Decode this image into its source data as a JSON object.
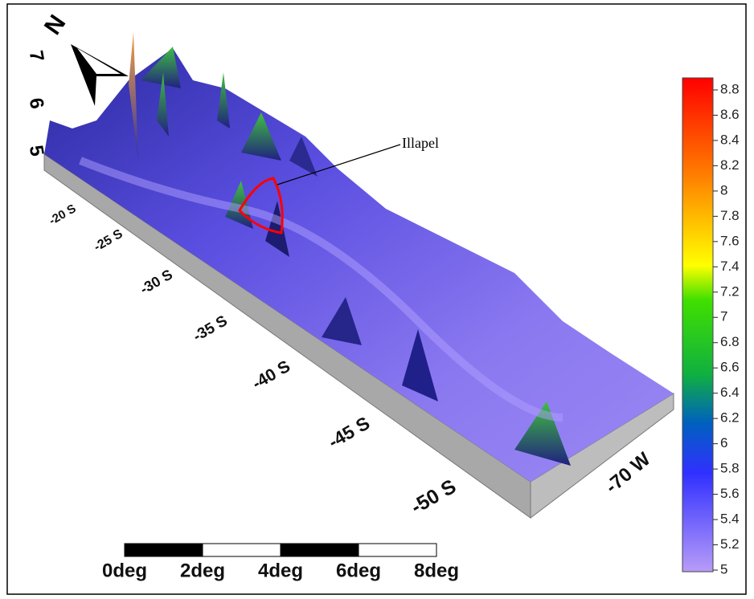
{
  "north_label": "N",
  "annotation": "Illapel",
  "z_ticks": [
    5,
    6,
    7
  ],
  "lat_labels": [
    "-20 S",
    "-25 S",
    "-30 S",
    "-35 S",
    "-40 S",
    "-45 S",
    "-50 S"
  ],
  "lon_labels": [
    "-70 W"
  ],
  "colorbar": {
    "lim": [
      5,
      8.8
    ],
    "ticks": [
      5,
      5.2,
      5.4,
      5.6,
      5.8,
      6,
      6.2,
      6.4,
      6.6,
      6.8,
      7,
      7.2,
      7.4,
      7.6,
      7.8,
      8,
      8.2,
      8.4,
      8.6,
      8.8
    ]
  },
  "scale_bar": {
    "labels": [
      "0deg",
      "2deg",
      "4deg",
      "6deg",
      "8deg"
    ]
  }
}
